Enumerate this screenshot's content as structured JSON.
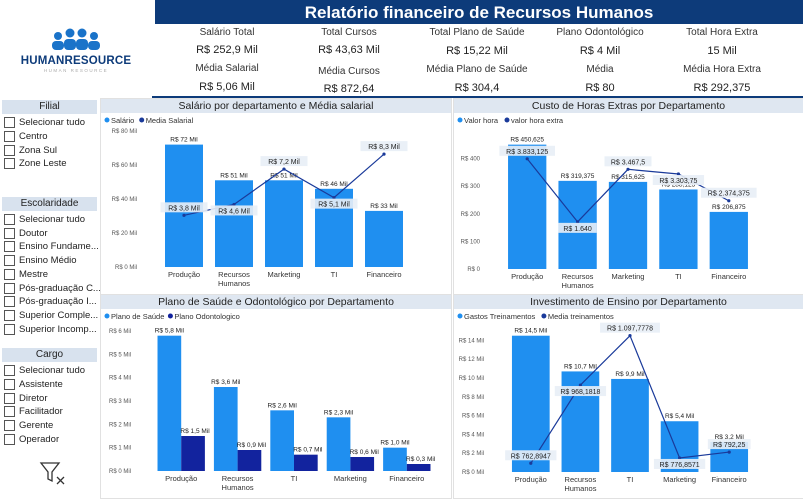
{
  "title": "Relatório financeiro de Recursos Humanos",
  "logo": {
    "text": "HUMANRESOURCE",
    "tagline": "HUMAN RESOURCE"
  },
  "kpis": [
    {
      "label": "Salário Total",
      "value": "R$ 252,9 Mil"
    },
    {
      "label": "Total Cursos",
      "value": "R$ 43,63 Mil"
    },
    {
      "label": "Total Plano de Saúde",
      "value": "R$ 15,22 Mil"
    },
    {
      "label": "Plano Odontológico",
      "value": "R$ 4 Mil"
    },
    {
      "label": "Total Hora Extra",
      "value": "15 Mil"
    },
    {
      "label": "Média Salarial",
      "value": "R$ 5,06 Mil"
    },
    {
      "label": "Média Cursos",
      "value": "R$ 872,64"
    },
    {
      "label": "Média Plano de Saúde",
      "value": "R$ 304,4"
    },
    {
      "label": "Média",
      "value": "R$ 80"
    },
    {
      "label": "Média Hora Extra",
      "value": "R$ 292,375"
    }
  ],
  "slicers": {
    "filial": {
      "title": "Filial",
      "items": [
        "Selecionar tudo",
        "Centro",
        "Zona Sul",
        "Zone Leste"
      ]
    },
    "escolaridade": {
      "title": "Escolaridade",
      "items": [
        "Selecionar tudo",
        "Doutor",
        "Ensino Fundame...",
        "Ensino Médio",
        "Mestre",
        "Pós-graduação C...",
        "Pós-graduação I...",
        "Superior Comple...",
        "Superior Incomp..."
      ]
    },
    "cargo": {
      "title": "Cargo",
      "items": [
        "Selecionar tudo",
        "Assistente",
        "Diretor",
        "Facilitador",
        "Gerente",
        "Operador"
      ]
    }
  },
  "colors": {
    "header": "#0d3b7a",
    "bar": "#1f8ff0",
    "bar_dark": "#12239e",
    "line": "#1a3a9a"
  },
  "chart_data": [
    {
      "id": "c1",
      "type": "bar",
      "title": "Salário por departamento e Média salarial",
      "legend": [
        "Salário",
        "Media Salarial"
      ],
      "categories": [
        "Produção",
        "Recursos Humanos",
        "Marketing",
        "TI",
        "Financeiro"
      ],
      "series": [
        {
          "name": "Salário",
          "values": [
            72,
            51,
            51,
            46,
            33
          ],
          "labels": [
            "R$ 72 Mil",
            "R$ 51 Mil",
            "R$ 51 Mil",
            "R$ 46 Mil",
            "R$ 33 Mil"
          ]
        },
        {
          "name": "Media Salarial",
          "values": [
            3.8,
            4.6,
            7.2,
            5.1,
            8.3
          ],
          "labels": [
            "R$ 3,8 Mil",
            "R$ 4,6 Mil",
            "R$ 7,2 Mil",
            "R$ 5,1 Mil",
            "R$ 8,3 Mil"
          ]
        }
      ],
      "yticks": [
        "R$ 0 Mil",
        "R$ 20 Mil",
        "R$ 40 Mil",
        "R$ 60 Mil",
        "R$ 80 Mil"
      ],
      "ylim": [
        0,
        80
      ],
      "y2lim": [
        0,
        10
      ]
    },
    {
      "id": "c2",
      "type": "bar",
      "title": "Custo de Horas Extras por Departamento",
      "legend": [
        "Valor hora",
        "valor hora extra"
      ],
      "categories": [
        "Produção",
        "Recursos Humanos",
        "Marketing",
        "TI",
        "Financeiro"
      ],
      "series": [
        {
          "name": "Valor hora",
          "values": [
            450.625,
            319.375,
            315.625,
            288.125,
            206.875
          ],
          "labels": [
            "R$ 450,625",
            "R$ 319,375",
            "R$ 315,625",
            "R$ 288,125",
            "R$ 206,875"
          ]
        },
        {
          "name": "valor hora extra",
          "values": [
            3833.125,
            1640,
            3467.5,
            3303.75,
            2374.375
          ],
          "labels": [
            "R$ 3.833,125",
            "R$ 1.640",
            "R$ 3.467,5",
            "R$ 3.303,75",
            "R$ 2.374,375"
          ]
        }
      ],
      "yticks": [
        "R$ 0",
        "R$ 100",
        "R$ 200",
        "R$ 300",
        "R$ 400"
      ],
      "ylim": [
        0,
        500
      ],
      "y2lim": [
        0,
        4800
      ]
    },
    {
      "id": "c3",
      "type": "bar",
      "title": "Plano de Saúde e Odontológico por Departamento",
      "legend": [
        "Plano de Saúde",
        "Plano Odontologico"
      ],
      "categories": [
        "Produção",
        "Recursos Humanos",
        "TI",
        "Marketing",
        "Financeiro"
      ],
      "series": [
        {
          "name": "Plano de Saúde",
          "values": [
            5.8,
            3.6,
            2.6,
            2.3,
            1.0
          ],
          "labels": [
            "R$ 5,8 Mil",
            "R$ 3,6 Mil",
            "R$ 2,6 Mil",
            "R$ 2,3 Mil",
            "R$ 1,0 Mil"
          ]
        },
        {
          "name": "Plano Odontologico",
          "values": [
            1.5,
            0.9,
            0.7,
            0.6,
            0.3
          ],
          "labels": [
            "R$ 1,5 Mil",
            "R$ 0,9 Mil",
            "R$ 0,7 Mil",
            "R$ 0,6 Mil",
            "R$ 0,3 Mil"
          ]
        }
      ],
      "yticks": [
        "R$ 0 Mil",
        "R$ 1 Mil",
        "R$ 2 Mil",
        "R$ 3 Mil",
        "R$ 4 Mil",
        "R$ 5 Mil",
        "R$ 6 Mil"
      ],
      "ylim": [
        0,
        6
      ]
    },
    {
      "id": "c4",
      "type": "bar",
      "title": "Investimento de Ensino por Departamento",
      "legend": [
        "Gastos Treinamentos",
        "Media treinamentos"
      ],
      "categories": [
        "Produção",
        "Recursos Humanos",
        "TI",
        "Marketing",
        "Financeiro"
      ],
      "series": [
        {
          "name": "Gastos Treinamentos",
          "values": [
            14.5,
            10.7,
            9.9,
            5.4,
            3.2
          ],
          "labels": [
            "R$ 14,5 Mil",
            "R$ 10,7 Mil",
            "R$ 9,9 Mil",
            "R$ 5,4 Mil",
            "R$ 3,2 Mil"
          ]
        },
        {
          "name": "Media treinamentos",
          "values": [
            762.8947,
            968.1818,
            1097.7778,
            776.8571,
            792.25
          ],
          "labels": [
            "R$ 762,8947",
            "R$ 968,1818",
            "R$ 1.097,7778",
            "R$ 776,8571",
            "R$ 792,25"
          ]
        }
      ],
      "yticks": [
        "R$ 0 Mil",
        "R$ 2 Mil",
        "R$ 4 Mil",
        "R$ 6 Mil",
        "R$ 8 Mil",
        "R$ 10 Mil",
        "R$ 12 Mil",
        "R$ 14 Mil"
      ],
      "ylim": [
        0,
        15
      ],
      "y2lim": [
        740,
        1110
      ]
    }
  ]
}
